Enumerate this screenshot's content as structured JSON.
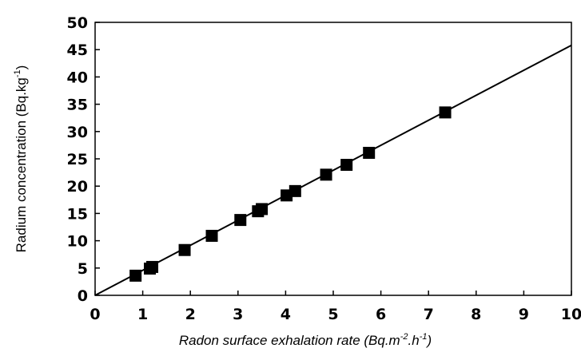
{
  "chart_data": {
    "type": "scatter",
    "title": "",
    "xlabel": {
      "main": "Radon surface exhalation rate (Bq.m",
      "sup1": "-2",
      "mid": ".h",
      "sup2": "-1",
      "end": ")"
    },
    "ylabel": {
      "main": "Radium concentration (Bq.kg",
      "sup": "-1",
      "end": ")"
    },
    "xlim": [
      0,
      10
    ],
    "ylim": [
      0,
      50
    ],
    "x_ticks": [
      0,
      1,
      2,
      3,
      4,
      5,
      6,
      7,
      8,
      9,
      10
    ],
    "y_ticks": [
      0,
      5,
      10,
      15,
      20,
      25,
      30,
      35,
      40,
      45,
      50
    ],
    "grid": false,
    "marker": "square",
    "color": "#000000",
    "points": [
      {
        "x": 0.85,
        "y": 3.6
      },
      {
        "x": 1.15,
        "y": 4.9
      },
      {
        "x": 1.2,
        "y": 5.2
      },
      {
        "x": 1.88,
        "y": 8.3
      },
      {
        "x": 2.45,
        "y": 10.9
      },
      {
        "x": 3.05,
        "y": 13.8
      },
      {
        "x": 3.42,
        "y": 15.4
      },
      {
        "x": 3.5,
        "y": 15.8
      },
      {
        "x": 4.02,
        "y": 18.3
      },
      {
        "x": 4.2,
        "y": 19.1
      },
      {
        "x": 4.85,
        "y": 22.1
      },
      {
        "x": 5.28,
        "y": 23.9
      },
      {
        "x": 5.75,
        "y": 26.1
      },
      {
        "x": 7.35,
        "y": 33.5
      }
    ],
    "fit_line": {
      "x": [
        0,
        10
      ],
      "y": [
        0,
        45.8
      ]
    }
  }
}
